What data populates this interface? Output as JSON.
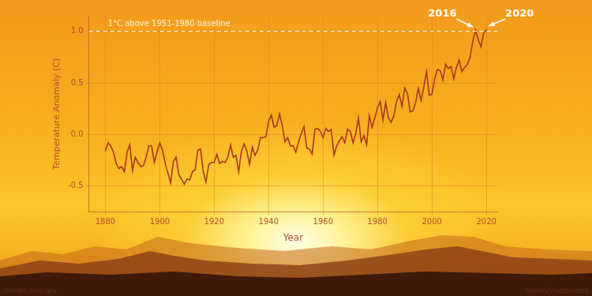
{
  "chart_data": {
    "type": "line",
    "x_label": "Year",
    "y_label": "Temperature Anomaly (C)",
    "color": "#a8391c",
    "grid": true,
    "x": [
      1880,
      1881,
      1882,
      1883,
      1884,
      1885,
      1886,
      1887,
      1888,
      1889,
      1890,
      1891,
      1892,
      1893,
      1894,
      1895,
      1896,
      1897,
      1898,
      1899,
      1900,
      1901,
      1902,
      1903,
      1904,
      1905,
      1906,
      1907,
      1908,
      1909,
      1910,
      1911,
      1912,
      1913,
      1914,
      1915,
      1916,
      1917,
      1918,
      1919,
      1920,
      1921,
      1922,
      1923,
      1924,
      1925,
      1926,
      1927,
      1928,
      1929,
      1930,
      1931,
      1932,
      1933,
      1934,
      1935,
      1936,
      1937,
      1938,
      1939,
      1940,
      1941,
      1942,
      1943,
      1944,
      1945,
      1946,
      1947,
      1948,
      1949,
      1950,
      1951,
      1952,
      1953,
      1954,
      1955,
      1956,
      1957,
      1958,
      1959,
      1960,
      1961,
      1962,
      1963,
      1964,
      1965,
      1966,
      1967,
      1968,
      1969,
      1970,
      1971,
      1972,
      1973,
      1974,
      1975,
      1976,
      1977,
      1978,
      1979,
      1980,
      1981,
      1982,
      1983,
      1984,
      1985,
      1986,
      1987,
      1988,
      1989,
      1990,
      1991,
      1992,
      1993,
      1994,
      1995,
      1996,
      1997,
      1998,
      1999,
      2000,
      2001,
      2002,
      2003,
      2004,
      2005,
      2006,
      2007,
      2008,
      2009,
      2010,
      2011,
      2012,
      2013,
      2014,
      2015,
      2016,
      2017,
      2018,
      2019,
      2020
    ],
    "values": [
      -0.16,
      -0.08,
      -0.11,
      -0.17,
      -0.28,
      -0.33,
      -0.31,
      -0.36,
      -0.17,
      -0.1,
      -0.35,
      -0.22,
      -0.27,
      -0.31,
      -0.3,
      -0.22,
      -0.11,
      -0.11,
      -0.27,
      -0.17,
      -0.08,
      -0.15,
      -0.28,
      -0.37,
      -0.47,
      -0.26,
      -0.22,
      -0.39,
      -0.43,
      -0.48,
      -0.43,
      -0.44,
      -0.36,
      -0.34,
      -0.15,
      -0.14,
      -0.36,
      -0.46,
      -0.29,
      -0.27,
      -0.27,
      -0.19,
      -0.28,
      -0.26,
      -0.27,
      -0.22,
      -0.1,
      -0.22,
      -0.2,
      -0.36,
      -0.16,
      -0.09,
      -0.16,
      -0.29,
      -0.12,
      -0.2,
      -0.15,
      -0.03,
      -0.03,
      -0.02,
      0.13,
      0.19,
      0.07,
      0.09,
      0.2,
      0.09,
      -0.07,
      -0.03,
      -0.11,
      -0.11,
      -0.17,
      -0.07,
      0.01,
      0.08,
      -0.13,
      -0.14,
      -0.19,
      0.05,
      0.06,
      0.03,
      -0.03,
      0.06,
      0.03,
      0.05,
      -0.2,
      -0.11,
      -0.06,
      -0.02,
      -0.08,
      0.05,
      0.03,
      -0.08,
      0.01,
      0.16,
      -0.07,
      -0.01,
      -0.1,
      0.18,
      0.07,
      0.16,
      0.26,
      0.32,
      0.14,
      0.31,
      0.16,
      0.12,
      0.18,
      0.32,
      0.39,
      0.27,
      0.45,
      0.4,
      0.22,
      0.23,
      0.31,
      0.45,
      0.33,
      0.46,
      0.61,
      0.38,
      0.39,
      0.54,
      0.63,
      0.62,
      0.53,
      0.68,
      0.64,
      0.66,
      0.54,
      0.65,
      0.72,
      0.61,
      0.65,
      0.68,
      0.75,
      0.9,
      1.01,
      0.92,
      0.85,
      0.98,
      1.02
    ],
    "xlim": [
      1874,
      2024
    ],
    "xticks": [
      1880,
      1900,
      1920,
      1940,
      1960,
      1980,
      2000,
      2020
    ],
    "ylim": [
      -0.75,
      1.15
    ],
    "yticks": [
      -0.5,
      {
        "value": 0,
        "label": "0.0"
      },
      0.5,
      {
        "value": 1,
        "label": "1.0"
      }
    ],
    "reference_line": {
      "y": 1,
      "label": "1°C above 1951-1980 baseline"
    },
    "annotations": [
      {
        "text": "2016",
        "x": 2016,
        "y": 1.01
      },
      {
        "text": "2020",
        "x": 2020,
        "y": 1.02
      }
    ],
    "credits": [
      "climate.nasa.gov",
      "daulon/Shutterstock"
    ]
  }
}
